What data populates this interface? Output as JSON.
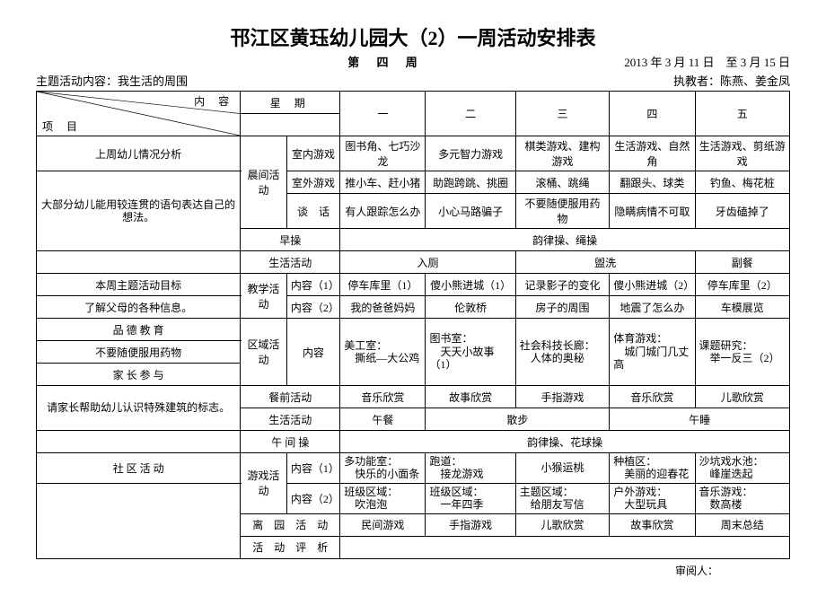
{
  "title": "邗江区黄珏幼儿园大（2）一周活动安排表",
  "week_label": "第 四 周",
  "date_range": "2013 年 3 月 11 日　至 3 月 15 日",
  "topic_label": "主题活动内容：我生活的周围",
  "teacher_label": "执教者：陈燕、姜金凤",
  "header": {
    "content": "内 容",
    "weekday": "星 期",
    "project": "项 目",
    "days": [
      "一",
      "二",
      "三",
      "四",
      "五"
    ]
  },
  "rows": {
    "r1_left": "上周幼儿情况分析",
    "morning": "晨间活动",
    "indoor": "室内游戏",
    "outdoor": "室外游戏",
    "talk": "谈　话",
    "r1_d": [
      "图书角、七巧沙龙",
      "多元智力游戏",
      "棋类游戏、建构游戏",
      "生活游戏、自然角",
      "生活游戏、剪纸游戏"
    ],
    "r2_left": "大部分幼儿能用较连贯的语句表达自己的想法。",
    "r2_d": [
      "推小车、赶小猪",
      "助跑跨跳、挑圈",
      "滚桶、跳绳",
      "翻跟头、球类",
      "钓鱼、梅花桩"
    ],
    "r3_d": [
      "有人跟踪怎么办",
      "小心马路骗子",
      "不要随便服用药物",
      "隐瞒病情不可取",
      "牙齿磕掉了"
    ],
    "early_ex": "早操",
    "early_ex_val": "韵律操、绳操",
    "life_act": "生活活动",
    "life_vals": [
      "入厕",
      "盥洗",
      "副餐"
    ],
    "week_goal": "本周主题活动目标",
    "teach": "教学活动",
    "content1": "内容（1）",
    "content2": "内容（2）",
    "t1": [
      "停车库里（1）",
      "傻小熊进城（1）",
      "记录影子的变化",
      "傻小熊进城（2）",
      "停车库里（2）"
    ],
    "know_parents": "了解父母的各种信息。",
    "t2": [
      "我的爸爸妈妈",
      "伦敦桥",
      "房子的周围",
      "地震了怎么办",
      "车模展览"
    ],
    "moral": "品 德 教 育",
    "area": "区域活动",
    "area_content": "内容",
    "no_medicine": "不要随便服用药物",
    "area_d": [
      "美工室：\n　撕纸—大公鸡",
      "图书室：\n　天天小故事（1）",
      "社会科技长廊：\n　人体的奥秘",
      "体育游戏：\n　城门城门几丈高",
      "课题研究：\n　举一反三（2）"
    ],
    "parent": "家 长 参 与",
    "help_child": "请家长帮助幼儿认识特殊建筑的标志。",
    "before_meal": "餐前活动",
    "bm_d": [
      "音乐欣赏",
      "故事欣赏",
      "手指游戏",
      "音乐欣赏",
      "儿歌欣赏"
    ],
    "life_act2": "生活活动",
    "la2_d": [
      "午餐",
      "散步",
      "午睡",
      ""
    ],
    "noon_ex": "午 间 操",
    "noon_ex_val": "韵律操、花球操",
    "community": "社 区 活 动",
    "game": "游戏活动",
    "g1": [
      "多功能室：\n　快乐的小面条",
      "跑道：\n　接龙游戏",
      "小猴运桃",
      "种植区：\n　美丽的迎春花",
      "沙坑戏水池：\n　峰崖迭起"
    ],
    "g2": [
      "班级区域：\n　吹泡泡",
      "班级区域：\n　一年四季",
      "主题区域：\n　给朋友写信",
      "户外游戏：\n　大型玩具",
      "音乐游戏：\n　数高楼"
    ],
    "leave": "离　园　活　动",
    "leave_d": [
      "民间游戏",
      "手指游戏",
      "儿歌欣赏",
      "故事欣赏",
      "周末总结"
    ],
    "review": "活　动　评　析"
  },
  "footer": "审阅人："
}
